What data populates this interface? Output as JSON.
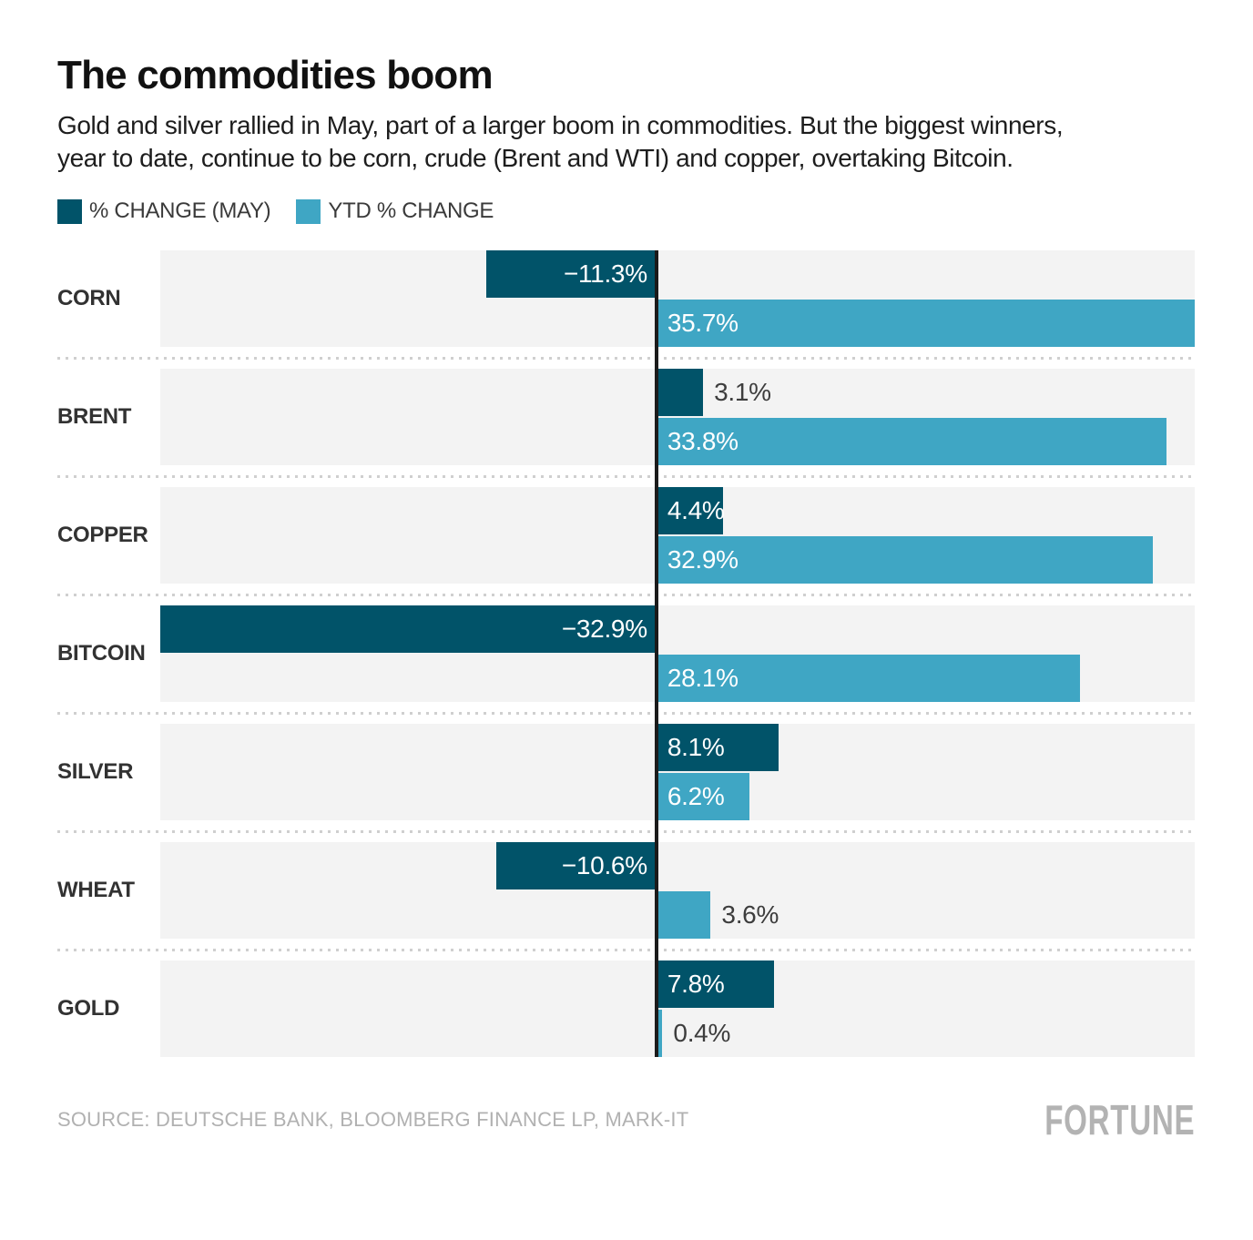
{
  "header": {
    "title": "The commodities boom",
    "subtitle_line1": "Gold and silver rallied in May, part of a larger boom in commodities. But the biggest winners,",
    "subtitle_line2": "year to date, continue to be corn, crude (Brent and WTI) and copper, overtaking Bitcoin."
  },
  "legend": [
    {
      "label": "% CHANGE (MAY)",
      "color": "#015369"
    },
    {
      "label": "YTD % CHANGE",
      "color": "#3fa6c4"
    }
  ],
  "chart_data": {
    "type": "bar",
    "orientation": "horizontal",
    "title": "The commodities boom",
    "categories": [
      "CORN",
      "BRENT",
      "COPPER",
      "BITCOIN",
      "SILVER",
      "WHEAT",
      "GOLD"
    ],
    "series": [
      {
        "name": "% CHANGE (MAY)",
        "color": "#015369",
        "values": [
          -11.3,
          3.1,
          4.4,
          -32.9,
          8.1,
          -10.6,
          7.8
        ],
        "labels": [
          "−11.3%",
          "3.1%",
          "4.4%",
          "−32.9%",
          "8.1%",
          "−10.6%",
          "7.8%"
        ]
      },
      {
        "name": "YTD % CHANGE",
        "color": "#3fa6c4",
        "values": [
          35.7,
          33.8,
          32.9,
          28.1,
          6.2,
          3.6,
          0.4
        ],
        "labels": [
          "35.7%",
          "33.8%",
          "32.9%",
          "28.1%",
          "6.2%",
          "3.6%",
          "0.4%"
        ]
      }
    ],
    "xlim": [
      -32.9,
      35.7
    ],
    "baseline": 0,
    "grid": false,
    "legend_position": "top-left",
    "row_background": "#f3f3f3",
    "baseline_color": "#1b1b1b"
  },
  "footer": {
    "source": "SOURCE: DEUTSCHE BANK, BLOOMBERG FINANCE LP, MARK-IT",
    "brand": "FORTUNE"
  }
}
